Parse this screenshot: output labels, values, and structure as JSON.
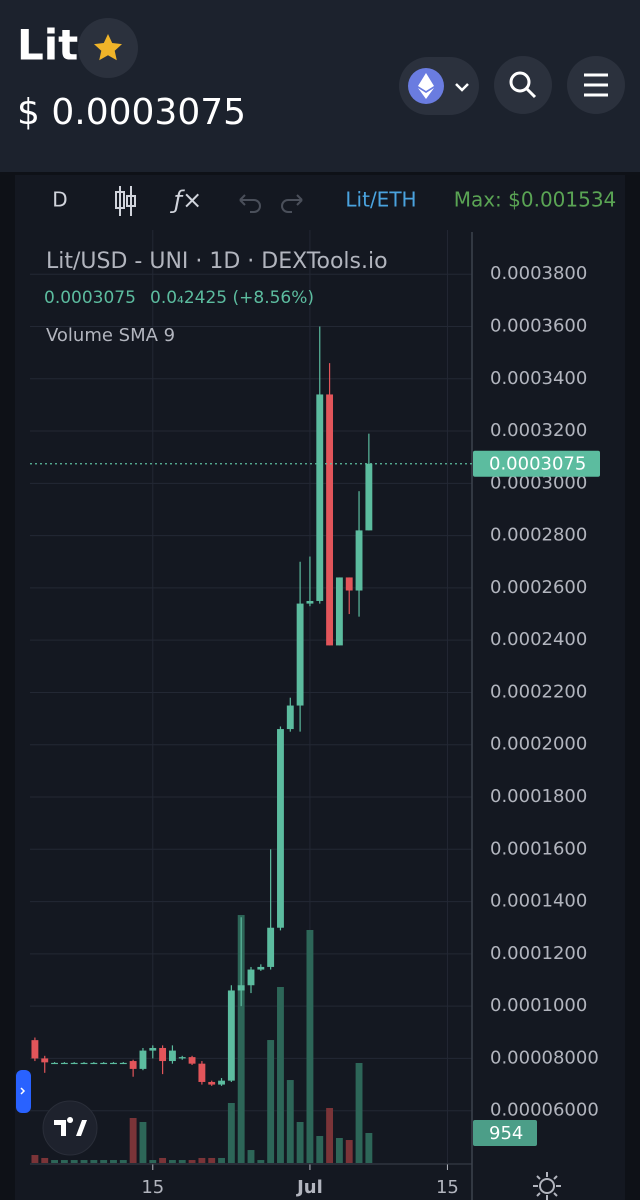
{
  "header": {
    "title": "Lit",
    "price": "$ 0.0003075"
  },
  "toolbar": {
    "interval": "D",
    "pair": "Lit/ETH",
    "max": "Max: $0.001534"
  },
  "chart_data": {
    "type": "candlestick",
    "legend_title": "Lit/USD - UNI · 1D · DEXTools.io",
    "change": "0.0₄2425 (+8.56%)",
    "study": "Volume SMA 9",
    "categories": [
      null,
      null,
      null,
      null,
      null,
      null,
      null,
      null,
      null,
      null,
      null,
      null,
      "15",
      null,
      null,
      null,
      null,
      null,
      null,
      null,
      null,
      null,
      null,
      null,
      null,
      null,
      null,
      null,
      "Jul",
      null,
      null,
      null,
      null,
      null,
      null,
      null,
      null,
      null,
      null,
      null,
      null,
      null,
      "15",
      null,
      null
    ],
    "open": [
      8.7e-05,
      8e-05,
      7.83e-05,
      7.83e-05,
      7.83e-05,
      7.83e-05,
      7.83e-05,
      7.83e-05,
      7.83e-05,
      7.83e-05,
      7.9e-05,
      7.6e-05,
      8.3e-05,
      8.4e-05,
      7.9e-05,
      8e-05,
      8.05e-05,
      7.8e-05,
      7.1e-05,
      7e-05,
      7.15e-05,
      0.000106,
      0.000108,
      0.000114,
      0.000115,
      0.00013,
      0.000206,
      0.000215,
      0.000254,
      0.000255,
      0.000334,
      0.000238,
      0.000264,
      0.000259,
      0.000282,
      null,
      null,
      null,
      null,
      null,
      null,
      null,
      null,
      null,
      null
    ],
    "high": [
      8.8e-05,
      8.1e-05,
      7.86e-05,
      7.86e-05,
      7.86e-05,
      7.86e-05,
      7.86e-05,
      7.86e-05,
      7.86e-05,
      7.86e-05,
      7.95e-05,
      8.4e-05,
      8.5e-05,
      8.5e-05,
      8.5e-05,
      8.1e-05,
      8.1e-05,
      7.9e-05,
      7.15e-05,
      7.25e-05,
      0.000108,
      0.000134,
      0.000115,
      0.000116,
      0.00016,
      0.000207,
      0.000218,
      0.00027,
      0.000272,
      0.00036,
      0.000346,
      0.000264,
      0.000264,
      0.000297,
      0.000319,
      null,
      null,
      null,
      null,
      null,
      null,
      null,
      null,
      null,
      null
    ],
    "low": [
      7.9e-05,
      7.45e-05,
      7.8e-05,
      7.8e-05,
      7.8e-05,
      7.8e-05,
      7.8e-05,
      7.8e-05,
      7.8e-05,
      7.8e-05,
      7.3e-05,
      7.55e-05,
      8e-05,
      7.4e-05,
      7.8e-05,
      7.95e-05,
      7.75e-05,
      7e-05,
      6.95e-05,
      6.95e-05,
      7.1e-05,
      0.0001,
      0.000105,
      0.0001135,
      0.000114,
      0.000129,
      0.000205,
      0.000205,
      0.000253,
      0.000254,
      0.000238,
      0.000238,
      0.00025,
      0.000249,
      0.000282,
      null,
      null,
      null,
      null,
      null,
      null,
      null,
      null,
      null,
      null
    ],
    "close": [
      8e-05,
      7.85e-05,
      7.83e-05,
      7.83e-05,
      7.83e-05,
      7.83e-05,
      7.83e-05,
      7.83e-05,
      7.83e-05,
      7.83e-05,
      7.6e-05,
      8.3e-05,
      8.4e-05,
      7.9e-05,
      8.3e-05,
      8.05e-05,
      7.8e-05,
      7.1e-05,
      7e-05,
      7.15e-05,
      0.000106,
      0.000108,
      0.000114,
      0.000115,
      0.00013,
      0.000206,
      0.000215,
      0.000254,
      0.000255,
      0.000334,
      0.000238,
      0.000264,
      0.000259,
      0.000282,
      0.0003075,
      null,
      null,
      null,
      null,
      null,
      null,
      null,
      null,
      null,
      null
    ],
    "volume": [
      254,
      160,
      95,
      95,
      95,
      95,
      95,
      95,
      95,
      95,
      1431,
      1304,
      95,
      160,
      95,
      95,
      95,
      160,
      160,
      160,
      1908,
      7886,
      413,
      95,
      3911,
      5597,
      2639,
      1304,
      7410,
      859,
      1749,
      795,
      731,
      3180,
      954,
      null,
      null,
      null,
      null,
      null,
      null,
      null,
      null,
      null,
      null
    ],
    "ylim": [
      4e-05,
      0.000395
    ],
    "yticks": [
      {
        "value": 0.00038,
        "label": "0.0003800"
      },
      {
        "value": 0.00036,
        "label": "0.0003600"
      },
      {
        "value": 0.00034,
        "label": "0.0003400"
      },
      {
        "value": 0.00032,
        "label": "0.0003200"
      },
      {
        "value": 0.0003,
        "label": "0.0003000"
      },
      {
        "value": 0.00028,
        "label": "0.0002800"
      },
      {
        "value": 0.00026,
        "label": "0.0002600"
      },
      {
        "value": 0.00024,
        "label": "0.0002400"
      },
      {
        "value": 0.00022,
        "label": "0.0002200"
      },
      {
        "value": 0.0002,
        "label": "0.0002000"
      },
      {
        "value": 0.00018,
        "label": "0.0001800"
      },
      {
        "value": 0.00016,
        "label": "0.0001600"
      },
      {
        "value": 0.00014,
        "label": "0.0001400"
      },
      {
        "value": 0.00012,
        "label": "0.0001200"
      },
      {
        "value": 0.0001,
        "label": "0.0001000"
      },
      {
        "value": 8e-05,
        "label": "0.00008000"
      },
      {
        "value": 6e-05,
        "label": "0.00006000"
      }
    ],
    "volume_lim": [
      0,
      9000
    ],
    "grid": true,
    "up_color": "#5cbc9f",
    "down_color": "#e2555a",
    "volume_up_color": "#2d6658",
    "volume_down_color": "#7b3438",
    "price_line_color": "#5cbc9f"
  }
}
